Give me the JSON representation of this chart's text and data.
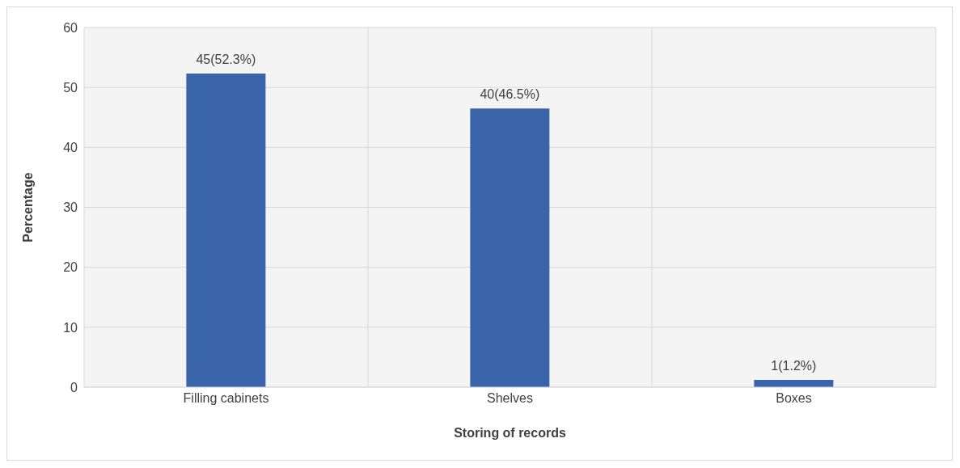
{
  "chart_data": {
    "type": "bar",
    "xlabel": "Storing of records",
    "ylabel": "Percentage",
    "categories": [
      "Filling cabinets",
      "Shelves",
      "Boxes"
    ],
    "values": [
      52.3,
      46.5,
      1.2
    ],
    "color": "#3a64aa",
    "value_labels": [
      "45(52.3%)",
      "40(46.5%)",
      "1(1.2%)"
    ],
    "ylim": [
      0,
      60
    ],
    "yticks": [
      0,
      10,
      20,
      30,
      40,
      50,
      60
    ],
    "grid": true,
    "legend": false
  }
}
